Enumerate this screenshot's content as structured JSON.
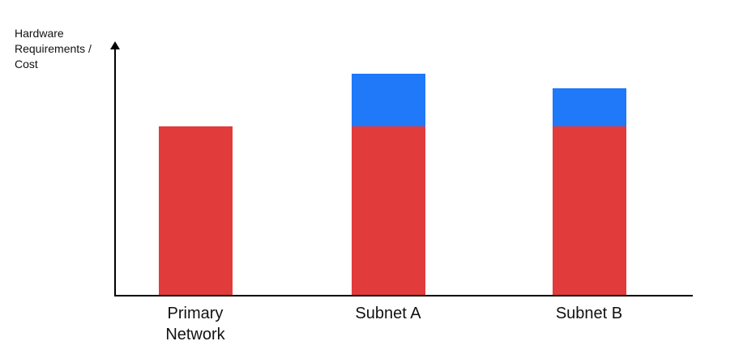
{
  "chart_data": {
    "type": "bar",
    "stacked": true,
    "title": "",
    "categories": [
      "Primary Network",
      "Subnet A",
      "Subnet B"
    ],
    "series": [
      {
        "name": "base-hardware-cost",
        "color": "#E23B3B",
        "values": [
          67,
          67,
          67
        ]
      },
      {
        "name": "subnet-additional-cost",
        "color": "#2079F8",
        "values": [
          0,
          21,
          15
        ]
      }
    ],
    "ylabel": "Hardware Requirements / Cost",
    "xlabel": "",
    "ylim": [
      0,
      100
    ],
    "grid": false,
    "legend": false,
    "colors": {
      "red": "#E23B3B",
      "blue": "#2079F8",
      "axis": "#000000",
      "text": "#111111"
    }
  }
}
